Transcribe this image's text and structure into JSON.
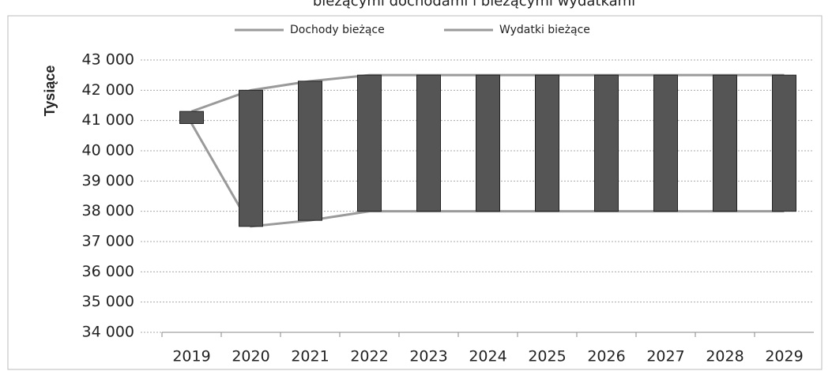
{
  "chart_data": {
    "type": "line",
    "title": "bieżącymi dochodami i bieżącymi wydatkami",
    "ylabel": "Tysiące",
    "categories": [
      "2019",
      "2020",
      "2021",
      "2022",
      "2023",
      "2024",
      "2025",
      "2026",
      "2027",
      "2028",
      "2029"
    ],
    "series": [
      {
        "name": "Dochody bieżące",
        "color": "#9a9a9a",
        "values": [
          41300,
          42000,
          42300,
          42500,
          42500,
          42500,
          42500,
          42500,
          42500,
          42500,
          42500
        ]
      },
      {
        "name": "Wydatki bieżące",
        "color": "#9a9a9a",
        "values": [
          40900,
          37500,
          37700,
          38000,
          38000,
          38000,
          38000,
          38000,
          38000,
          38000,
          38000
        ]
      }
    ],
    "updown_bars": true,
    "bar_color": "#555555",
    "ylim": [
      34000,
      43000
    ],
    "yticks": [
      {
        "value": 34000,
        "label": "34 000"
      },
      {
        "value": 35000,
        "label": "35 000"
      },
      {
        "value": 36000,
        "label": "36 000"
      },
      {
        "value": 37000,
        "label": "37 000"
      },
      {
        "value": 38000,
        "label": "38 000"
      },
      {
        "value": 39000,
        "label": "39 000"
      },
      {
        "value": 40000,
        "label": "40 000"
      },
      {
        "value": 41000,
        "label": "41 000"
      },
      {
        "value": 42000,
        "label": "42 000"
      },
      {
        "value": 43000,
        "label": "43 000"
      }
    ],
    "grid": true,
    "legend": "top"
  }
}
